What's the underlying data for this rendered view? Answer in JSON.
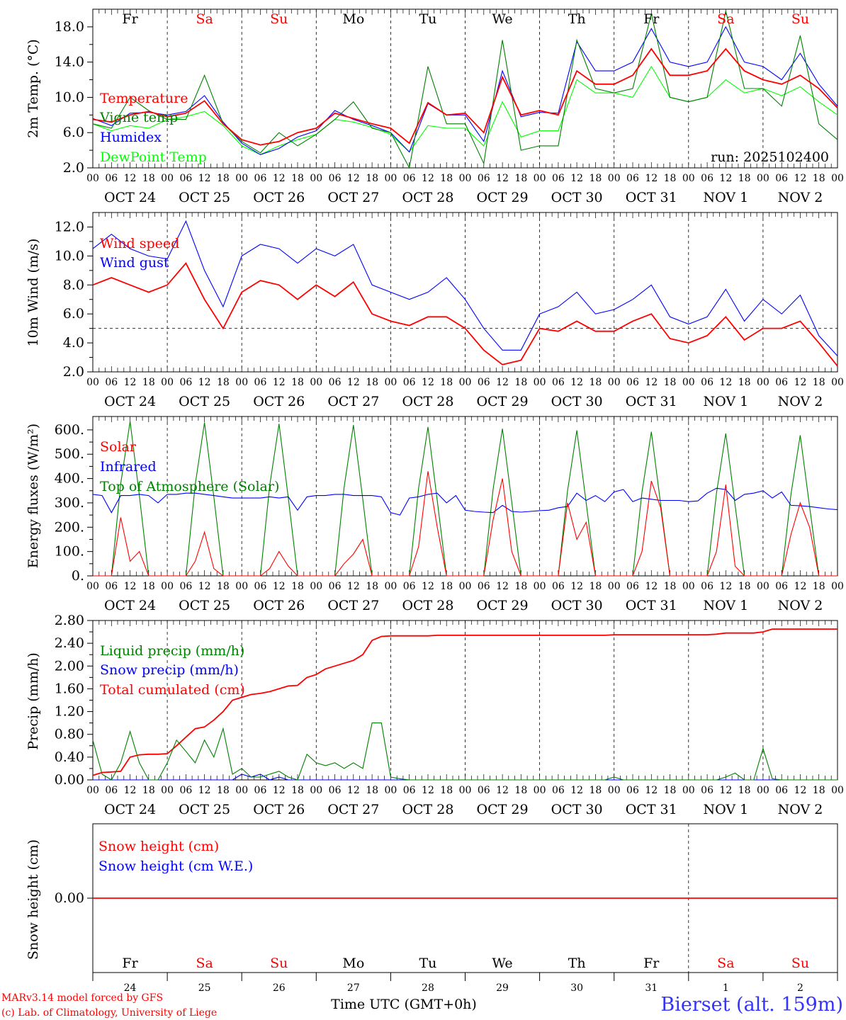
{
  "weekdays": [
    "Fr",
    "Sa",
    "Su",
    "Mo",
    "Tu",
    "We",
    "Th",
    "Fr",
    "Sa",
    "Su"
  ],
  "weekday_colors": [
    "#000000",
    "#ff0000",
    "#ff0000",
    "#000000",
    "#000000",
    "#000000",
    "#000000",
    "#000000",
    "#ff0000",
    "#ff0000"
  ],
  "dates": [
    "OCT 24",
    "OCT 25",
    "OCT 26",
    "OCT 27",
    "OCT 28",
    "OCT 29",
    "OCT 30",
    "OCT 31",
    "NOV  1",
    "NOV  2"
  ],
  "day_numbers": [
    "24",
    "25",
    "26",
    "27",
    "28",
    "29",
    "30",
    "31",
    "1",
    "2"
  ],
  "hour_labels": [
    "00",
    "06",
    "12",
    "18"
  ],
  "run_label": "run: 2025102400",
  "footer": {
    "model": "MARv3.14 model forced by GFS",
    "credit": "(c) Lab. of Climatology, University of Liege",
    "time_label": "Time UTC (GMT+0h)",
    "station": "Bierset (alt. 159m)"
  },
  "chart_data": [
    {
      "type": "line",
      "ylabel": "2m Temp. (°C)",
      "ylim": [
        2,
        20
      ],
      "yticks": [
        "2.0",
        "6.0",
        "10.0",
        "14.0",
        "18.0"
      ],
      "x_step_hours": 6,
      "series": [
        {
          "name": "Temperature",
          "color": "#ff0000",
          "values": [
            7.5,
            7.2,
            8.0,
            8.4,
            7.8,
            8.2,
            9.6,
            7.0,
            5.2,
            4.6,
            5.0,
            6.0,
            6.5,
            8.2,
            7.6,
            7.0,
            6.5,
            4.8,
            9.4,
            8.0,
            8.2,
            6.0,
            12.3,
            8.0,
            8.5,
            8.0,
            13.0,
            11.5,
            11.5,
            12.5,
            15.5,
            12.5,
            12.5,
            13.0,
            15.5,
            13.0,
            12.0,
            11.5,
            12.5,
            11.0,
            8.8
          ]
        },
        {
          "name": "Vigne temp",
          "color": "#008000",
          "values": [
            7.0,
            6.5,
            10.0,
            8.5,
            7.5,
            7.5,
            12.5,
            7.0,
            5.0,
            3.7,
            6.0,
            4.5,
            5.8,
            7.5,
            9.5,
            6.5,
            6.0,
            2.0,
            13.5,
            7.0,
            7.0,
            2.5,
            16.5,
            4.0,
            4.5,
            4.5,
            16.5,
            11.0,
            10.5,
            11.0,
            19.5,
            10.0,
            9.5,
            10.0,
            19.8,
            11.0,
            11.0,
            9.0,
            17.0,
            7.0,
            5.2
          ]
        },
        {
          "name": "Humidex",
          "color": "#0000ff",
          "values": [
            7.6,
            6.8,
            8.2,
            8.3,
            8.0,
            8.4,
            10.2,
            7.2,
            4.8,
            3.5,
            4.2,
            5.5,
            6.2,
            8.5,
            7.5,
            6.8,
            6.0,
            3.8,
            9.3,
            8.0,
            8.0,
            5.0,
            13.0,
            7.8,
            8.3,
            8.2,
            16.3,
            13.0,
            13.0,
            14.0,
            17.8,
            14.0,
            13.5,
            14.0,
            18.0,
            14.0,
            13.5,
            12.0,
            15.0,
            11.5,
            9.0
          ]
        },
        {
          "name": "DewPoint Temp",
          "color": "#00ff00",
          "values": [
            7.0,
            6.2,
            6.8,
            6.5,
            7.5,
            7.8,
            8.4,
            6.8,
            4.5,
            3.5,
            4.5,
            5.2,
            5.8,
            7.5,
            7.2,
            6.6,
            5.8,
            3.8,
            6.8,
            6.5,
            6.5,
            4.5,
            9.5,
            5.5,
            6.2,
            6.2,
            12.0,
            10.5,
            10.5,
            10.0,
            13.5,
            10.0,
            9.5,
            10.0,
            12.0,
            10.5,
            11.0,
            10.2,
            11.2,
            9.5,
            8.0
          ]
        }
      ]
    },
    {
      "type": "line",
      "ylabel": "10m Wind (m/s)",
      "ylim": [
        2,
        13
      ],
      "yticks": [
        "2.0",
        "4.0",
        "6.0",
        "8.0",
        "10.0",
        "12.0"
      ],
      "reference_line": 5,
      "x_step_hours": 6,
      "series": [
        {
          "name": "Wind speed",
          "color": "#ff0000",
          "values": [
            8.0,
            8.5,
            8.0,
            7.5,
            8.0,
            9.5,
            7.0,
            5.0,
            7.5,
            8.3,
            8.0,
            7.0,
            8.0,
            7.2,
            8.2,
            6.0,
            5.5,
            5.2,
            5.8,
            5.8,
            5.0,
            3.5,
            2.5,
            2.8,
            5.0,
            4.8,
            5.5,
            4.8,
            4.8,
            5.5,
            6.0,
            4.3,
            4.0,
            4.5,
            5.8,
            4.2,
            5.0,
            5.0,
            5.5,
            4.0,
            2.4
          ]
        },
        {
          "name": "Wind gust",
          "color": "#0000ff",
          "values": [
            10.5,
            11.5,
            10.5,
            10.0,
            9.8,
            12.4,
            9.0,
            6.5,
            10.0,
            10.8,
            10.5,
            9.5,
            10.5,
            10.0,
            10.8,
            8.0,
            7.5,
            7.0,
            7.5,
            8.5,
            7.0,
            5.0,
            3.5,
            3.5,
            6.0,
            6.5,
            7.5,
            6.0,
            6.3,
            7.0,
            8.0,
            5.8,
            5.3,
            5.8,
            7.7,
            5.5,
            7.0,
            6.0,
            7.3,
            4.5,
            3.1
          ]
        }
      ]
    },
    {
      "type": "line",
      "ylabel": "Energy fluxes (W/m²)",
      "ylim": [
        0,
        655
      ],
      "yticks": [
        "0.",
        "100.",
        "200.",
        "300.",
        "400.",
        "500.",
        "600."
      ],
      "x_step_hours": 3,
      "series": [
        {
          "name": "Solar",
          "color": "#ff0000",
          "values": [
            0,
            0,
            0,
            240,
            60,
            100,
            0,
            0,
            0,
            0,
            0,
            60,
            180,
            30,
            0,
            0,
            0,
            0,
            0,
            30,
            100,
            40,
            0,
            0,
            0,
            0,
            0,
            50,
            90,
            150,
            0,
            0,
            0,
            0,
            0,
            120,
            430,
            200,
            0,
            0,
            0,
            0,
            0,
            230,
            400,
            100,
            0,
            0,
            0,
            0,
            0,
            300,
            150,
            220,
            0,
            0,
            0,
            0,
            0,
            100,
            390,
            280,
            0,
            0,
            0,
            0,
            0,
            100,
            375,
            40,
            0,
            0,
            0,
            0,
            0,
            170,
            300,
            200,
            0,
            0,
            0
          ]
        },
        {
          "name": "Infrared",
          "color": "#0000ff",
          "values": [
            335,
            330,
            260,
            330,
            330,
            335,
            330,
            300,
            335,
            335,
            340,
            340,
            335,
            330,
            325,
            320,
            320,
            320,
            320,
            325,
            320,
            325,
            270,
            325,
            330,
            330,
            335,
            335,
            330,
            330,
            330,
            325,
            260,
            250,
            320,
            325,
            335,
            340,
            300,
            330,
            270,
            265,
            262,
            260,
            290,
            265,
            262,
            265,
            268,
            270,
            280,
            285,
            340,
            310,
            330,
            305,
            345,
            355,
            305,
            320,
            315,
            310,
            310,
            310,
            305,
            308,
            340,
            360,
            355,
            310,
            335,
            340,
            350,
            320,
            345,
            290,
            288,
            285,
            280,
            275,
            272
          ]
        },
        {
          "name": "Top of Atmosphere (Solar)",
          "color": "#008000",
          "values": [
            0,
            0,
            0,
            380,
            635,
            330,
            0,
            0,
            0,
            0,
            0,
            375,
            630,
            325,
            0,
            0,
            0,
            0,
            0,
            370,
            625,
            320,
            0,
            0,
            0,
            0,
            0,
            365,
            620,
            315,
            0,
            0,
            0,
            0,
            0,
            360,
            612,
            310,
            0,
            0,
            0,
            0,
            0,
            355,
            605,
            305,
            0,
            0,
            0,
            0,
            0,
            350,
            598,
            300,
            0,
            0,
            0,
            0,
            0,
            345,
            592,
            295,
            0,
            0,
            0,
            0,
            0,
            340,
            585,
            290,
            0,
            0,
            0,
            0,
            0,
            335,
            578,
            285,
            0,
            0,
            0
          ]
        }
      ]
    },
    {
      "type": "line",
      "ylabel": "Precip (mm/h)",
      "ylim": [
        0,
        2.8
      ],
      "yticks": [
        "0.00",
        "0.40",
        "0.80",
        "1.20",
        "1.60",
        "2.00",
        "2.40",
        "2.80"
      ],
      "x_step_hours": 3,
      "series": [
        {
          "name": "Liquid precip (mm/h)",
          "color": "#008000",
          "values": [
            0.7,
            0.1,
            0,
            0.3,
            0.85,
            0.3,
            0,
            0,
            0.3,
            0.7,
            0.5,
            0.3,
            0.7,
            0.4,
            0.9,
            0.1,
            0.2,
            0.05,
            0.05,
            0.1,
            0.15,
            0.05,
            0,
            0.45,
            0.3,
            0.25,
            0.3,
            0.2,
            0.3,
            0.2,
            1.0,
            1.0,
            0.05,
            0.02,
            0,
            0,
            0,
            0,
            0,
            0,
            0,
            0,
            0,
            0,
            0,
            0,
            0,
            0,
            0,
            0,
            0,
            0,
            0,
            0,
            0,
            0,
            0.05,
            0,
            0,
            0,
            0,
            0,
            0,
            0,
            0,
            0,
            0,
            0,
            0.05,
            0.12,
            0,
            0,
            0.55,
            0.02,
            0,
            0,
            0,
            0,
            0,
            0,
            0
          ]
        },
        {
          "name": "Snow precip (mm/h)",
          "color": "#0000ff",
          "values": [
            0,
            0,
            0,
            0,
            0,
            0,
            0,
            0,
            0,
            0,
            0,
            0,
            0,
            0,
            0,
            0,
            0.1,
            0.05,
            0.1,
            0,
            0.05,
            0,
            0,
            0,
            0,
            0,
            0,
            0,
            0,
            0,
            0,
            0,
            0,
            0,
            0,
            0,
            0,
            0,
            0,
            0,
            0,
            0,
            0,
            0,
            0,
            0,
            0,
            0,
            0,
            0,
            0,
            0,
            0,
            0,
            0,
            0,
            0,
            0,
            0,
            0,
            0,
            0,
            0,
            0,
            0,
            0,
            0,
            0,
            0,
            0,
            0,
            0,
            0,
            0,
            0,
            0,
            0,
            0,
            0,
            0,
            0
          ]
        },
        {
          "name": "Total cumulated (cm)",
          "color": "#ff0000",
          "values": [
            0.08,
            0.13,
            0.14,
            0.15,
            0.4,
            0.44,
            0.45,
            0.45,
            0.46,
            0.6,
            0.75,
            0.9,
            0.93,
            1.05,
            1.2,
            1.4,
            1.45,
            1.5,
            1.52,
            1.55,
            1.6,
            1.65,
            1.66,
            1.8,
            1.85,
            1.95,
            2.0,
            2.05,
            2.1,
            2.2,
            2.45,
            2.52,
            2.53,
            2.53,
            2.53,
            2.53,
            2.53,
            2.54,
            2.54,
            2.54,
            2.54,
            2.54,
            2.54,
            2.54,
            2.54,
            2.54,
            2.54,
            2.54,
            2.54,
            2.54,
            2.54,
            2.54,
            2.54,
            2.54,
            2.54,
            2.54,
            2.55,
            2.55,
            2.55,
            2.55,
            2.55,
            2.55,
            2.55,
            2.55,
            2.55,
            2.55,
            2.55,
            2.56,
            2.58,
            2.58,
            2.58,
            2.58,
            2.6,
            2.65,
            2.65,
            2.65,
            2.65,
            2.65,
            2.65,
            2.65,
            2.65
          ]
        }
      ]
    },
    {
      "type": "line",
      "ylabel": "Snow height (cm)",
      "ylim": [
        -1,
        1
      ],
      "yticks": [
        "0.00"
      ],
      "x_step_hours": 240,
      "series": [
        {
          "name": "Snow height (cm)",
          "color": "#ff0000",
          "values": [
            0,
            0
          ]
        },
        {
          "name": "Snow height (cm W.E.)",
          "color": "#0000ff",
          "values": [
            0,
            0
          ]
        }
      ]
    }
  ]
}
